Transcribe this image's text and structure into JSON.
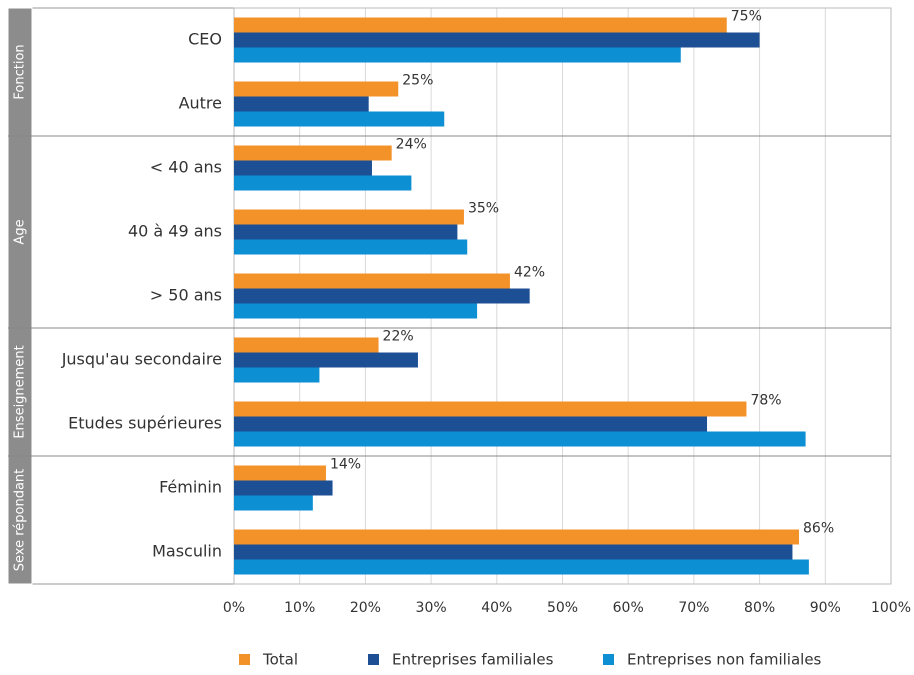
{
  "chart_data": {
    "type": "bar",
    "orientation": "horizontal",
    "groups": [
      {
        "name": "Fonction",
        "categories": [
          "CEO",
          "Autre"
        ]
      },
      {
        "name": "Age",
        "categories": [
          "< 40 ans",
          "40 à 49 ans",
          "> 50 ans"
        ]
      },
      {
        "name": "Enseignement",
        "categories": [
          "Jusqu'au secondaire",
          "Etudes supérieures"
        ]
      },
      {
        "name": "Sexe répondant",
        "categories": [
          "Féminin",
          "Masculin"
        ]
      }
    ],
    "series": [
      {
        "name": "Total",
        "color": "#f39229",
        "values": [
          75,
          25,
          24,
          35,
          42,
          22,
          78,
          14,
          86
        ],
        "value_labels": [
          "75%",
          "25%",
          "24%",
          "35%",
          "42%",
          "22%",
          "78%",
          "14%",
          "86%"
        ]
      },
      {
        "name": "Entreprises familiales",
        "color": "#1c4f94",
        "values": [
          80,
          20.5,
          21,
          34,
          45,
          28,
          72,
          15,
          85
        ]
      },
      {
        "name": "Entreprises non familiales",
        "color": "#0d8fd3",
        "values": [
          68,
          32,
          27,
          35.5,
          37,
          13,
          87,
          12,
          87.5
        ]
      }
    ],
    "xlim": [
      0,
      100
    ],
    "xticks": [
      {
        "value": 0,
        "label": "0%"
      },
      {
        "value": 10,
        "label": "10%"
      },
      {
        "value": 20,
        "label": "20%"
      },
      {
        "value": 30,
        "label": "30%"
      },
      {
        "value": 40,
        "label": "40%"
      },
      {
        "value": 50,
        "label": "50%"
      },
      {
        "value": 60,
        "label": "60%"
      },
      {
        "value": 70,
        "label": "70%"
      },
      {
        "value": 80,
        "label": "80%"
      },
      {
        "value": 90,
        "label": "90%"
      },
      {
        "value": 100,
        "label": "100%"
      }
    ],
    "grid": true,
    "legend": "bottom"
  }
}
